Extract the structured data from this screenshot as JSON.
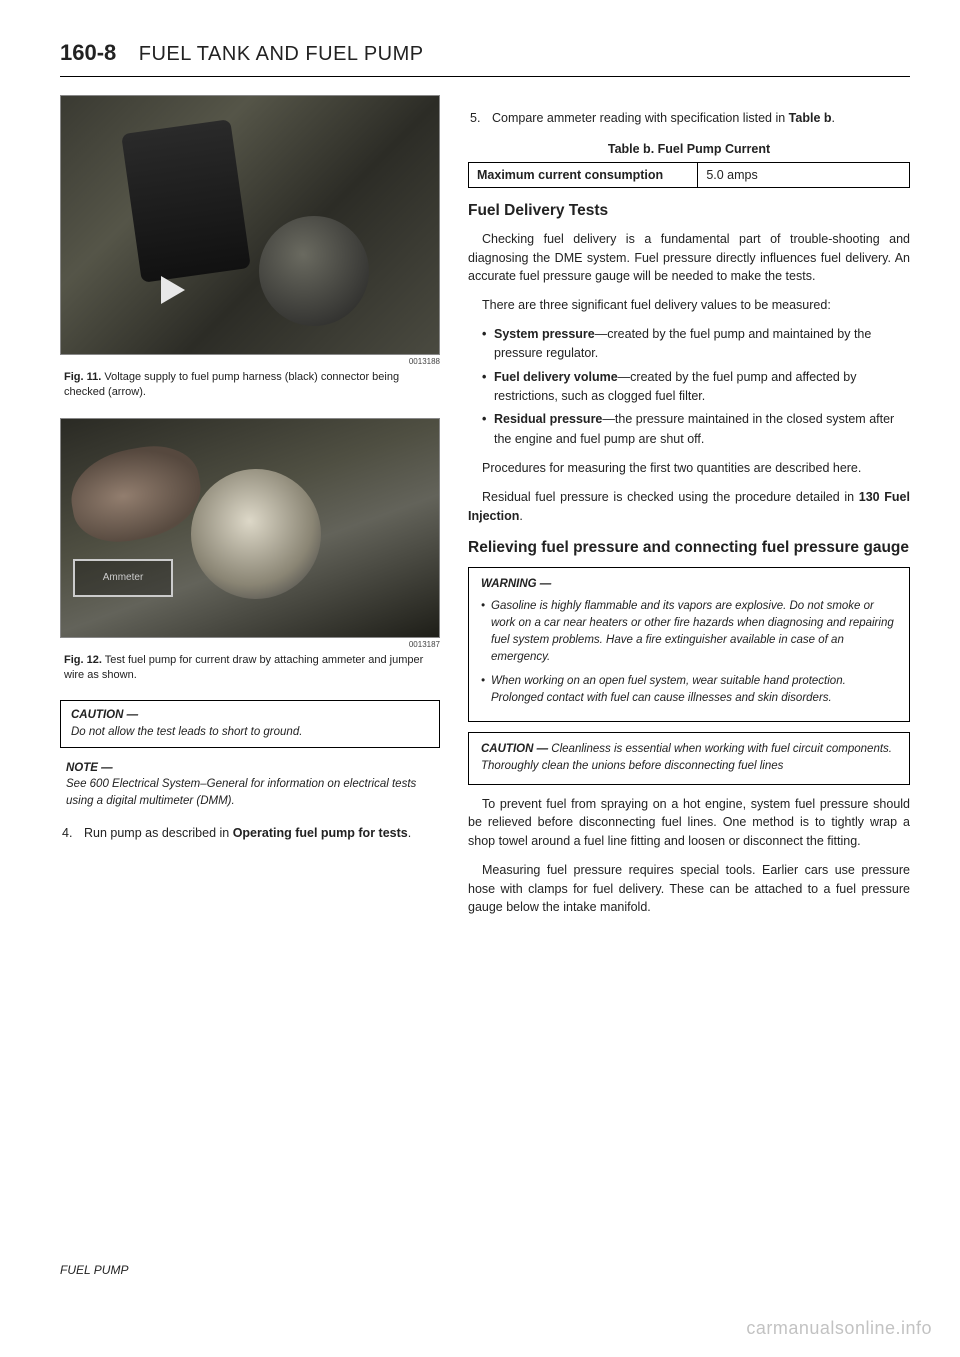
{
  "header": {
    "page_number": "160-8",
    "title": "FUEL TANK AND FUEL PUMP"
  },
  "left": {
    "photo1_id": "0013188",
    "fig11_label": "Fig. 11.",
    "fig11_text": "Voltage supply to fuel pump harness (black) connector being checked (arrow).",
    "photo2_id": "0013187",
    "photo2_ammeter": "Ammeter",
    "fig12_label": "Fig. 12.",
    "fig12_text": "Test fuel pump for current draw by attaching ammeter and jumper wire as shown.",
    "caution1_label": "CAUTION —",
    "caution1_body": "Do not allow the test leads to short to ground.",
    "note_label": "NOTE —",
    "note_body": "See 600 Electrical System–General for information on electrical tests using a digital multimeter (DMM).",
    "step4_num": "4.",
    "step4_text": "Run pump as described in Operating fuel pump for tests."
  },
  "right": {
    "step5_num": "5.",
    "step5_text": "Compare ammeter reading with specification listed in Table b.",
    "table_caption": "Table b. Fuel Pump Current",
    "table_r1c1": "Maximum current consumption",
    "table_r1c2": "5.0 amps",
    "h_fuel_delivery": "Fuel Delivery Tests",
    "p1": "Checking fuel delivery is a fundamental part of trouble-shooting and diagnosing the DME system. Fuel pressure directly influences fuel delivery. An accurate fuel pressure gauge will be needed to make the tests.",
    "p2": "There are three significant fuel delivery values to be measured:",
    "bullets": [
      "System pressure—created by the fuel pump and maintained by the pressure regulator.",
      "Fuel delivery volume—created by the fuel pump and affected by restrictions, such as clogged fuel filter.",
      "Residual pressure—the pressure maintained in the closed system after the engine and fuel pump are shut off."
    ],
    "p3": "Procedures for measuring the first two quantities are described here.",
    "p4": "Residual fuel pressure is checked using the procedure detailed in 130 Fuel Injection.",
    "h_relieving": "Relieving fuel pressure and connecting fuel pressure gauge",
    "warning_label": "WARNING —",
    "warning_items": [
      "Gasoline is highly flammable and its vapors are explosive. Do not smoke or work on a car near heaters or other fire hazards when diagnosing and repairing fuel system problems. Have a fire extinguisher available in case of an emergency.",
      "When working on an open fuel system, wear suitable hand protection. Prolonged contact with fuel can cause illnesses and skin disorders."
    ],
    "caution2_label": "CAUTION —",
    "caution2_body": "Cleanliness is essential when working with fuel circuit components. Thoroughly clean the unions before disconnecting fuel lines",
    "p5": "To prevent fuel from spraying on a hot engine, system fuel pressure should be relieved before disconnecting fuel lines. One method is to tightly wrap a shop towel around a fuel line fitting and loosen or disconnect the fitting.",
    "p6": "Measuring fuel pressure requires special tools. Earlier cars use pressure hose with clamps for fuel delivery. These can be attached to a fuel pressure gauge below the intake manifold."
  },
  "footer": "FUEL PUMP",
  "watermark": "carmanualsonline.info"
}
